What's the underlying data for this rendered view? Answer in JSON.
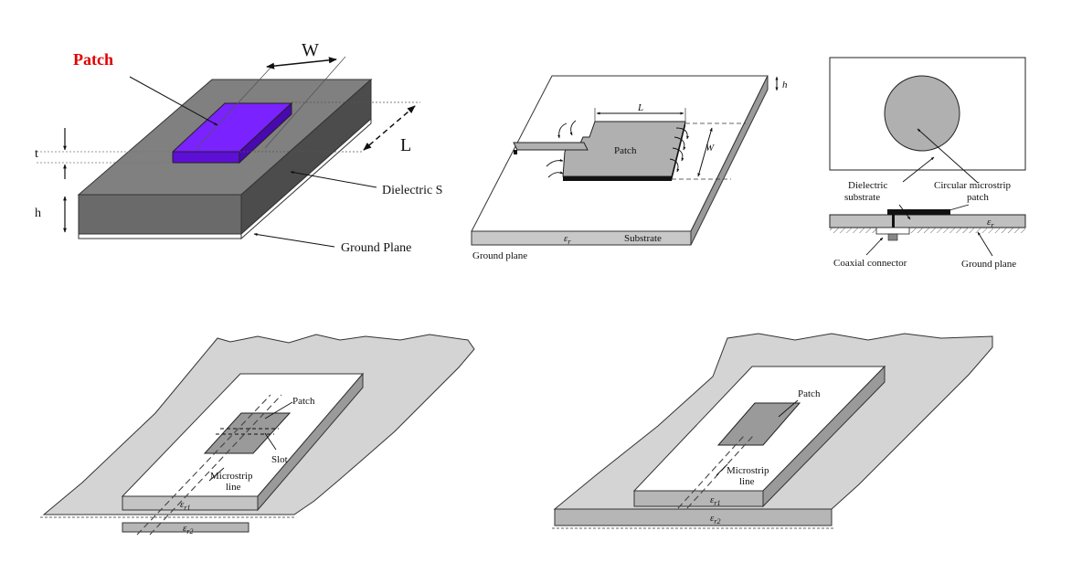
{
  "fig1": {
    "patch_label": "Patch",
    "w_label": "W",
    "l_label": "L",
    "t_label": "t",
    "h_label": "h",
    "dielectric_label": "Dielectric S",
    "ground_label": "Ground Plane",
    "colors": {
      "patch": "#6a12e8",
      "patch_label": "#e00000",
      "substrate_top": "#808080",
      "substrate_front": "#6a6a6a",
      "substrate_side": "#4c4c4c"
    }
  },
  "fig2": {
    "h_label": "h",
    "l_label": "L",
    "w_label": "W",
    "patch_label": "Patch",
    "er_label": "ε",
    "er_sub": "r",
    "substrate_label": "Substrate",
    "ground_label": "Ground plane"
  },
  "fig3": {
    "dielectric_label_1": "Dielectric",
    "dielectric_label_2": "substrate",
    "patch_label_1": "Circular microstrip",
    "patch_label_2": "patch",
    "er_label": "ε",
    "er_sub": "r",
    "coax_label": "Coaxial connector",
    "ground_label": "Ground plane"
  },
  "fig4": {
    "patch_label": "Patch",
    "slot_label": "Slot",
    "microstrip_label_1": "Microstrip",
    "microstrip_label_2": "line",
    "er1_label": "ε",
    "er1_sub": "r1",
    "er2_label": "ε",
    "er2_sub": "r2"
  },
  "fig5": {
    "patch_label": "Patch",
    "microstrip_label_1": "Microstrip",
    "microstrip_label_2": "line",
    "er1_label": "ε",
    "er1_sub": "r1",
    "er2_label": "ε",
    "er2_sub": "r2"
  }
}
